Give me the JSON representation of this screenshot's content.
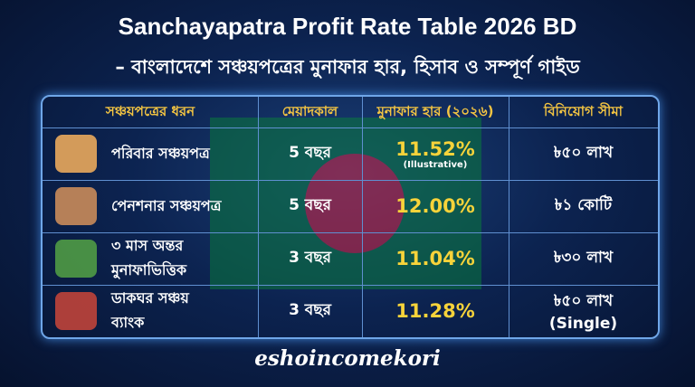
{
  "header": {
    "title": "Sanchayapatra Profit Rate Table 2026 BD",
    "subtitle": "– বাংলাদেশে সঞ্চয়পত্রের মুনাফার হার, হিসাব ও সম্পূর্ণ গাইড"
  },
  "table": {
    "columns": [
      "সঞ্চয়পত্রের ধরন",
      "মেয়াদকাল",
      "মুনাফার হার (২০২৬)",
      "বিনিয়োগ সীমা"
    ],
    "rows": [
      {
        "type": [
          "পরিবার সঞ্চয়পত্র"
        ],
        "term": "5 বছর",
        "rate": "11.52%",
        "rate_note": "(Illustrative)",
        "limit": "৳৫০ লাখ"
      },
      {
        "type": [
          "পেনশনার সঞ্চয়পত্র"
        ],
        "term": "5 বছর",
        "rate": "12.00%",
        "limit": "৳১ কোটি"
      },
      {
        "type": [
          "৩ মাস অন্তর",
          "মুনাফাভিত্তিক"
        ],
        "term": "3 বছর",
        "rate": "11.04%",
        "limit": "৳৩০ লাখ"
      },
      {
        "type": [
          "ডাকঘর সঞ্চয়",
          "ব্যাংক"
        ],
        "term": "3 বছর",
        "rate": "11.28%",
        "limit": "৳৫০ লাখ",
        "limit_note": "(Single)"
      }
    ]
  },
  "footer": {
    "brand": "eshoincomekori"
  }
}
